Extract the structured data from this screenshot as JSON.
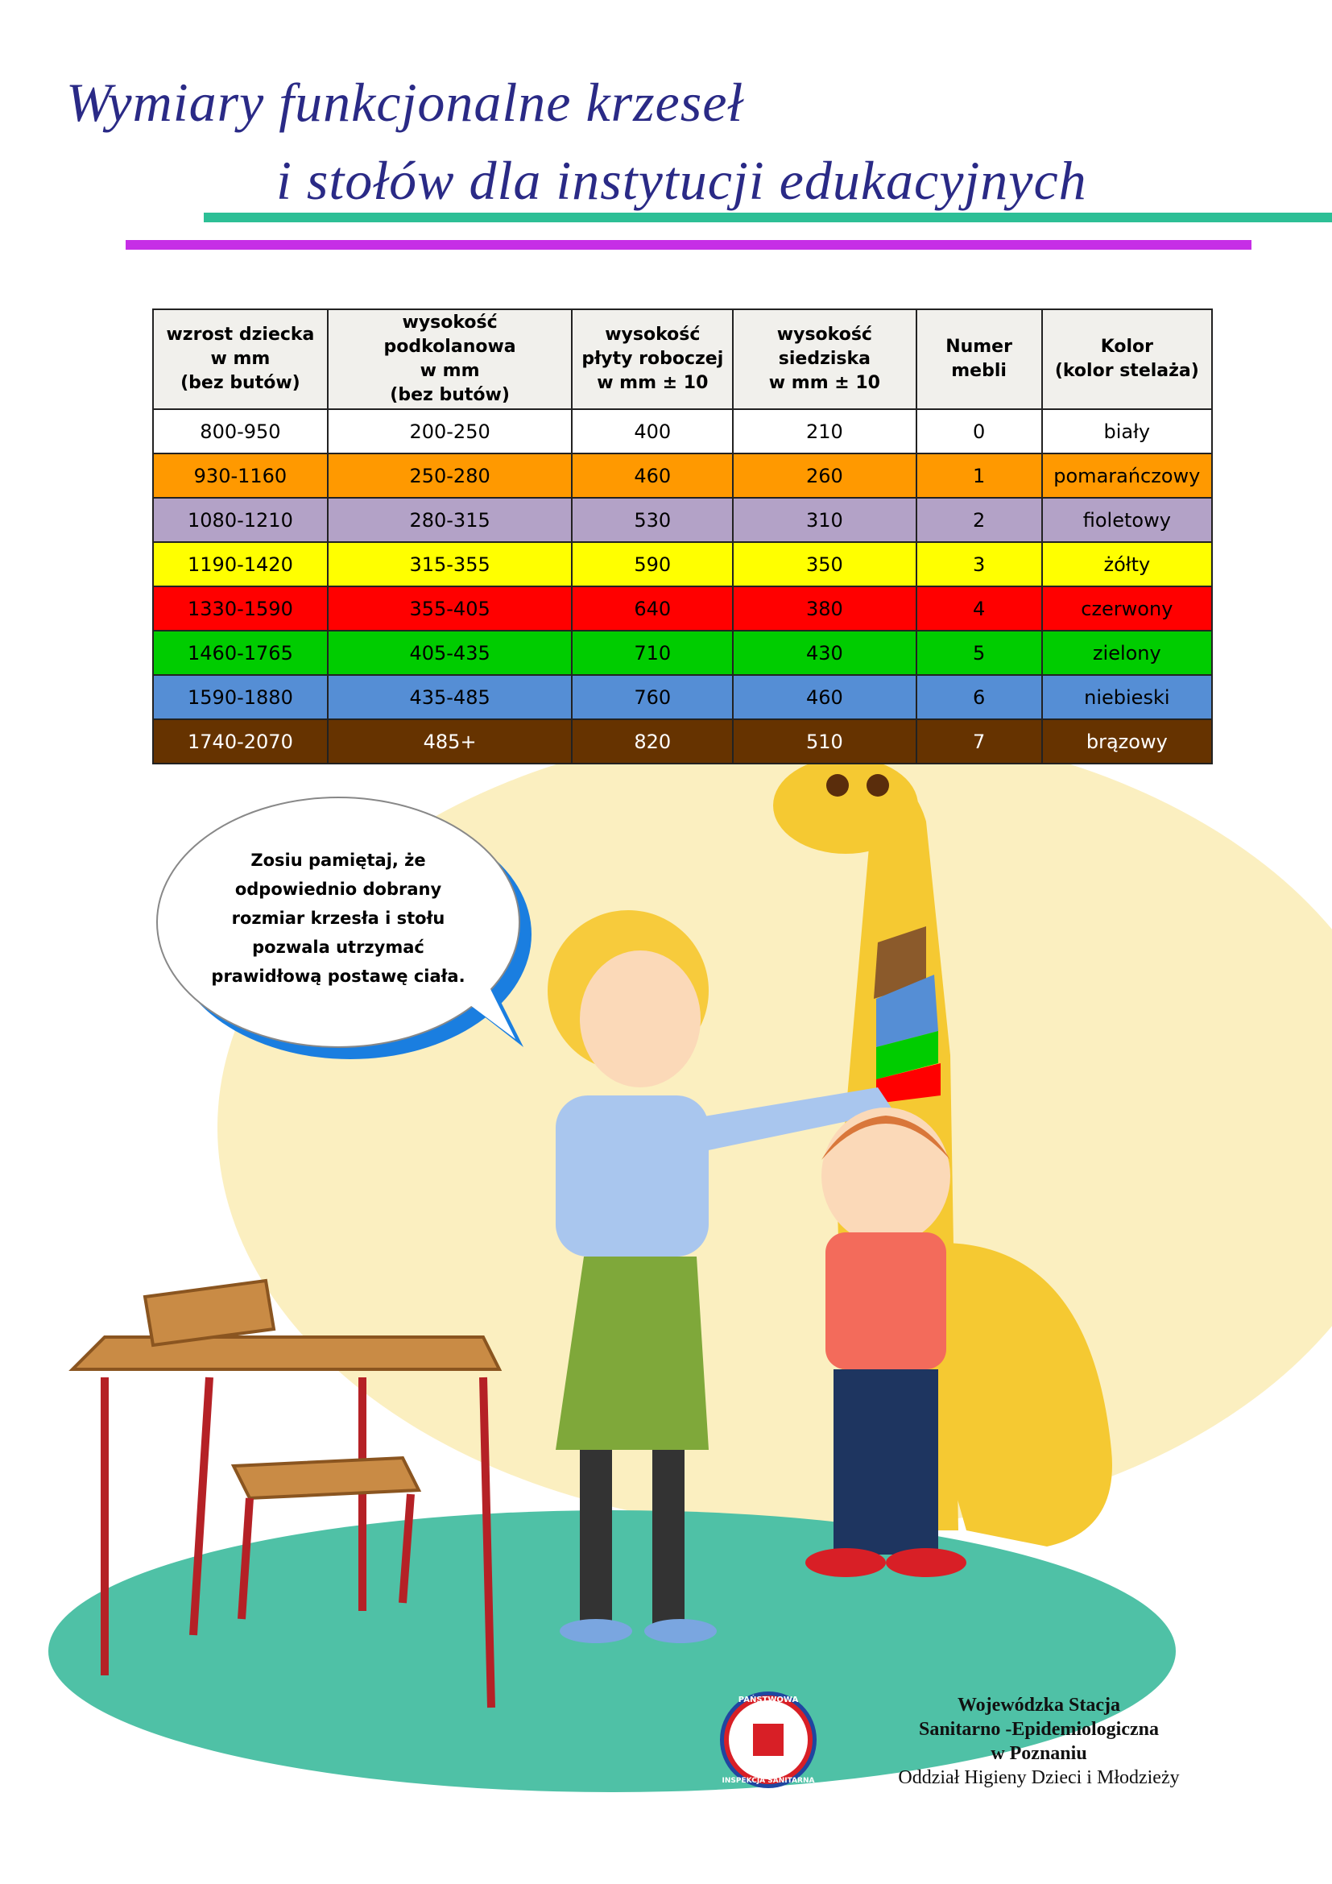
{
  "header": {
    "title_lines": [
      "Wymiary funkcjonalne krzeseł",
      "i stołów dla instytucji edukacyjnych"
    ]
  },
  "table": {
    "header": [
      [
        "wzrost dziecka",
        "w mm",
        "(bez butów)"
      ],
      [
        "wysokość",
        "podkolanowa",
        "w mm",
        "(bez butów)"
      ],
      [
        "wysokość",
        "płyty roboczej",
        "w mm ± 10"
      ],
      [
        "wysokość",
        "siedziska",
        "w mm ± 10"
      ],
      [
        "Numer",
        "mebli"
      ],
      [
        "Kolor",
        "(kolor stelaża)"
      ]
    ],
    "rows": [
      [
        "800-950",
        "200-250",
        "400",
        "210",
        "0",
        "biały"
      ],
      [
        "930-1160",
        "250-280",
        "460",
        "260",
        "1",
        "pomarańczowy"
      ],
      [
        "1080-1210",
        "280-315",
        "530",
        "310",
        "2",
        "fioletowy"
      ],
      [
        "1190-1420",
        "315-355",
        "590",
        "350",
        "3",
        "żółty"
      ],
      [
        "1330-1590",
        "355-405",
        "640",
        "380",
        "4",
        "czerwony"
      ],
      [
        "1460-1765",
        "405-435",
        "710",
        "430",
        "5",
        "zielony"
      ],
      [
        "1590-1880",
        "435-485",
        "760",
        "460",
        "6",
        "niebieski"
      ],
      [
        "1740-2070",
        "485+",
        "820",
        "510",
        "7",
        "brązowy"
      ]
    ]
  },
  "speech_bubble": {
    "lines": [
      "Zosiu pamiętaj, że",
      "odpowiednio dobrany",
      "rozmiar krzesła i stołu",
      "pozwala utrzymać",
      "prawidłową postawę ciała."
    ]
  },
  "logo": {
    "top": "PAŃSTWOWA",
    "bottom": "INSPEKCJA SANITARNA"
  },
  "footer": {
    "lines": [
      "Wojewódzka Stacja",
      "Sanitarno -Epidemiologiczna",
      "w Poznaniu"
    ],
    "department": "Oddział Higieny Dzieci i Młodzieży"
  }
}
